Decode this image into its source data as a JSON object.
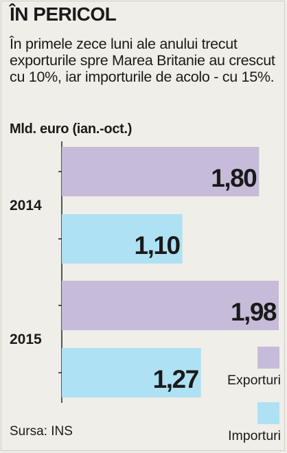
{
  "header": {
    "title": "ÎN PERICOL",
    "subtitle": "În primele zece luni ale anului trecut exporturile spre Marea Britanie au crescut cu 10%, iar importurile de acolo - cu 15%.",
    "unit": "Mld. euro (ian.-oct.)"
  },
  "footer": {
    "source": "Sursa: INS"
  },
  "chart_data": {
    "type": "bar",
    "orientation": "horizontal",
    "categories": [
      "2014",
      "2015"
    ],
    "series": [
      {
        "name": "Exporturi",
        "values": [
          1.8,
          1.98
        ],
        "labels": [
          "1,80",
          "1,98"
        ],
        "color": "#c6bcd9"
      },
      {
        "name": "Importuri",
        "values": [
          1.1,
          1.27
        ],
        "labels": [
          "1,10",
          "1,27"
        ],
        "color": "#aee1f3"
      }
    ],
    "xlim": [
      0,
      1.98
    ],
    "legend": "bottom-right",
    "grid": false
  }
}
